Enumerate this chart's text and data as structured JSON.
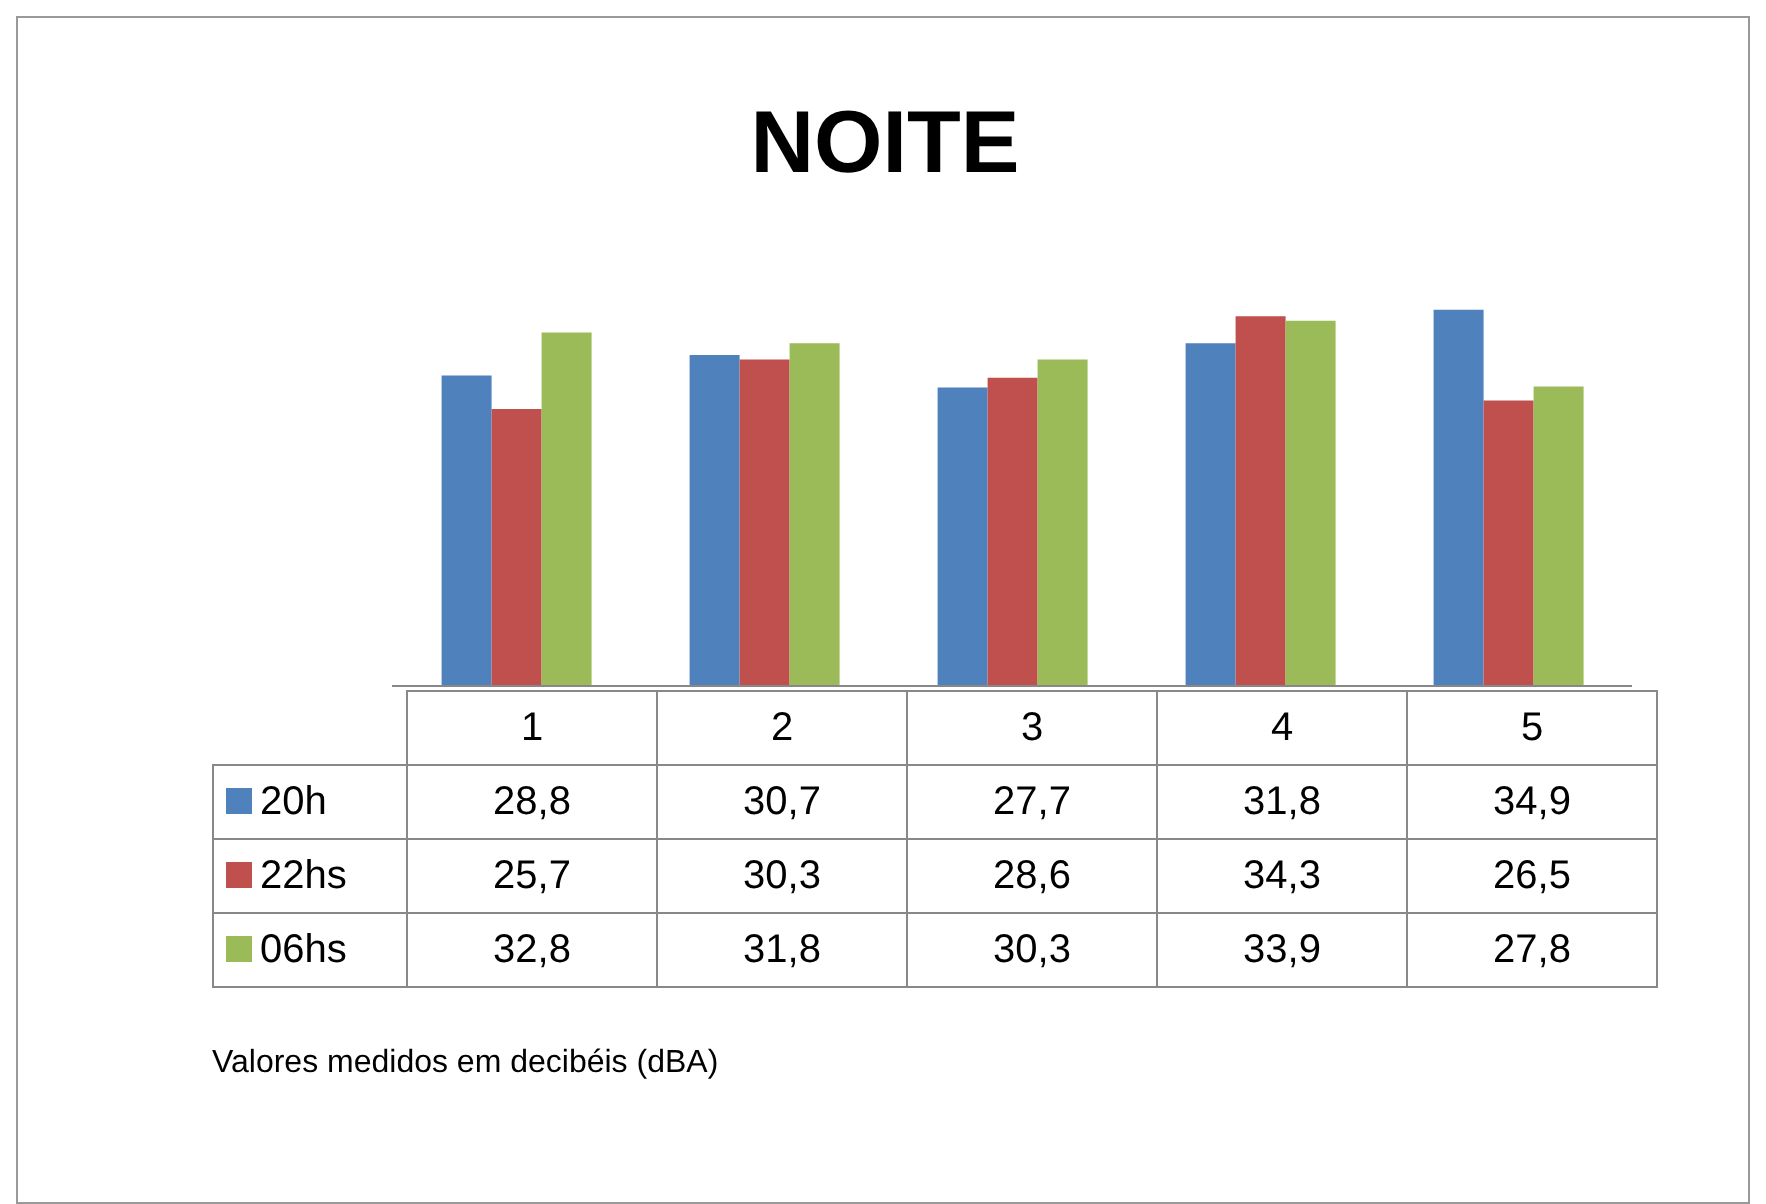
{
  "chart_data": {
    "type": "bar",
    "title": "NOITE",
    "categories": [
      "1",
      "2",
      "3",
      "4",
      "5"
    ],
    "series": [
      {
        "name": "20h",
        "color": "#4f81bd",
        "values": [
          28.8,
          30.7,
          27.7,
          31.8,
          34.9
        ],
        "value_labels": [
          "28,8",
          "30,7",
          "27,7",
          "31,8",
          "34,9"
        ]
      },
      {
        "name": "22hs",
        "color": "#c0504d",
        "values": [
          25.7,
          30.3,
          28.6,
          34.3,
          26.5
        ],
        "value_labels": [
          "25,7",
          "30,3",
          "28,6",
          "34,3",
          "26,5"
        ]
      },
      {
        "name": "06hs",
        "color": "#9bbb59",
        "values": [
          32.8,
          31.8,
          30.3,
          33.9,
          27.8
        ],
        "value_labels": [
          "32,8",
          "31,8",
          "30,3",
          "33,9",
          "27,8"
        ]
      }
    ],
    "legend": "left",
    "tick_labels": "x",
    "annotations": [
      "Valores medidos em decibéis (dBA)"
    ]
  }
}
